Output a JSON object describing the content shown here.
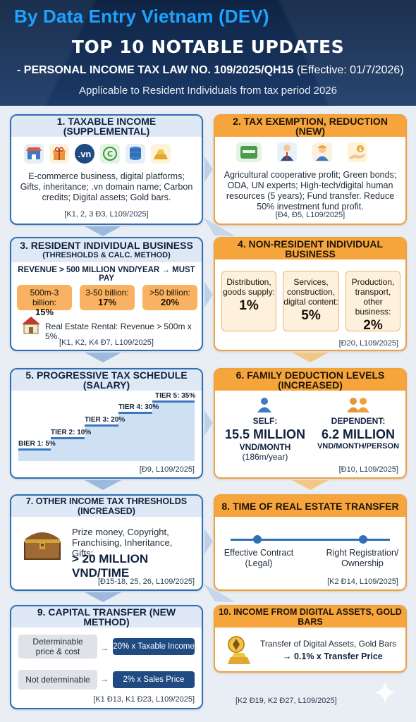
{
  "header": {
    "brand": "By Data Entry Vietnam (DEV)",
    "title": "TOP 10 NOTABLE UPDATES",
    "subtitle_main": "- PERSONAL INCOME TAX LAW NO. 109/2025/QH15",
    "subtitle_effective": "(Effective: 01/7/2026)",
    "applicable": "Applicable to Resident Individuals from tax period 2026"
  },
  "cards": {
    "c1": {
      "title": "1. TAXABLE INCOME (SUPPLEMENTAL)",
      "icons": [
        "shop-icon",
        "gift-icon",
        "vn-domain-icon",
        "carbon-credit-icon",
        "digital-assets-icon",
        "gold-bars-icon"
      ],
      "vn_label": ".vn",
      "body": "E-commerce business, digital platforms; Gifts, inheritance; .vn domain name; Carbon credits; Digital assets; Gold bars.",
      "ref": "[K1, 2, 3 Đ3, L109/2025]"
    },
    "c2": {
      "title": "2. TAX EXEMPTION, REDUCTION (NEW)",
      "icons": [
        "cooperative-badge-icon",
        "expert-icon",
        "engineer-icon",
        "fund-transfer-icon"
      ],
      "body": "Agricultural cooperative profit; Green bonds; ODA, UN experts; High-tech/digital human resources (5 years); Fund transfer. Reduce 50% investment fund profit.",
      "ref": "[Đ4, Đ5, L109/2025]"
    },
    "c3": {
      "title": "3. RESIDENT INDIVIDUAL BUSINESS",
      "title_sub": "(THRESHOLDS & CALC. METHOD)",
      "revenue_line": "REVENUE > 500 MILLION VND/YEAR → MUST PAY",
      "tiers": [
        {
          "range": "500m-3 billion:",
          "rate": "15%"
        },
        {
          "range": "3-50 billion:",
          "rate": "17%"
        },
        {
          "range": ">50 billion:",
          "rate": "20%"
        }
      ],
      "rental": "Real Estate Rental: Revenue > 500m x 5%.",
      "ref": "[K1, K2, K4 Đ7, L109/2025]"
    },
    "c4": {
      "title": "4. NON-RESIDENT INDIVIDUAL BUSINESS",
      "boxes": [
        {
          "label": "Distribution, goods supply:",
          "pct": "1%"
        },
        {
          "label": "Services, construction, digital content:",
          "pct": "5%"
        },
        {
          "label": "Production, transport, other business:",
          "pct": "2%"
        }
      ],
      "ref": "[Đ20, L109/2025]"
    },
    "c5": {
      "title": "5. PROGRESSIVE TAX SCHEDULE (SALARY)",
      "tiers": [
        "BIER 1: 5%",
        "TIER 2: 10%",
        "TIER 3: 20%",
        "TIER 4: 30%",
        "TIER 5: 35%"
      ],
      "ref": "[Đ9, L109/2025]"
    },
    "c6": {
      "title": "6. FAMILY DEDUCTION LEVELS (INCREASED)",
      "self_label": "SELF:",
      "self_amount": "15.5 MILLION",
      "self_unit": "VND/MONTH",
      "self_note": "(186m/year)",
      "dep_label": "DEPENDENT:",
      "dep_amount": "6.2 MILLION",
      "dep_unit": "VND/MONTH/PERSON",
      "ref": "[Đ10, L109/2025]"
    },
    "c7": {
      "title": "7. OTHER INCOME TAX THRESHOLDS (INCREASED)",
      "body": "Prize money, Copyright, Franchising, Inheritance, Gifts:",
      "threshold": "> 20 MILLION VND/TIME",
      "ref": "[Đ15-18, 25, 26, L109/2025]"
    },
    "c8": {
      "title": "8. TIME OF REAL ESTATE TRANSFER",
      "left_label": "Effective Contract (Legal)",
      "right_label": "Right Registration/ Ownership",
      "ref": "[K2 Đ14, L109/2025]"
    },
    "c9": {
      "title": "9. CAPITAL TRANSFER (NEW METHOD)",
      "row1_left": "Determinable price & cost",
      "row1_right": "20% x Taxable Income",
      "row2_left": "Not determinable",
      "row2_right": "2% x Sales Price",
      "ref": "[K1 Đ13, K1 Đ23, L109/2025]"
    },
    "c10": {
      "title": "10. INCOME FROM DIGITAL ASSETS, GOLD BARS",
      "line1": "Transfer of Digital Assets, Gold Bars",
      "line2": "→ 0.1% x Transfer Price",
      "ref": "[K2 Đ19, K2 Đ27, L109/2025]"
    }
  },
  "colors": {
    "blue_border": "#2f6fb5",
    "orange_border": "#f0a23a",
    "header_bg": "#0f2444"
  }
}
